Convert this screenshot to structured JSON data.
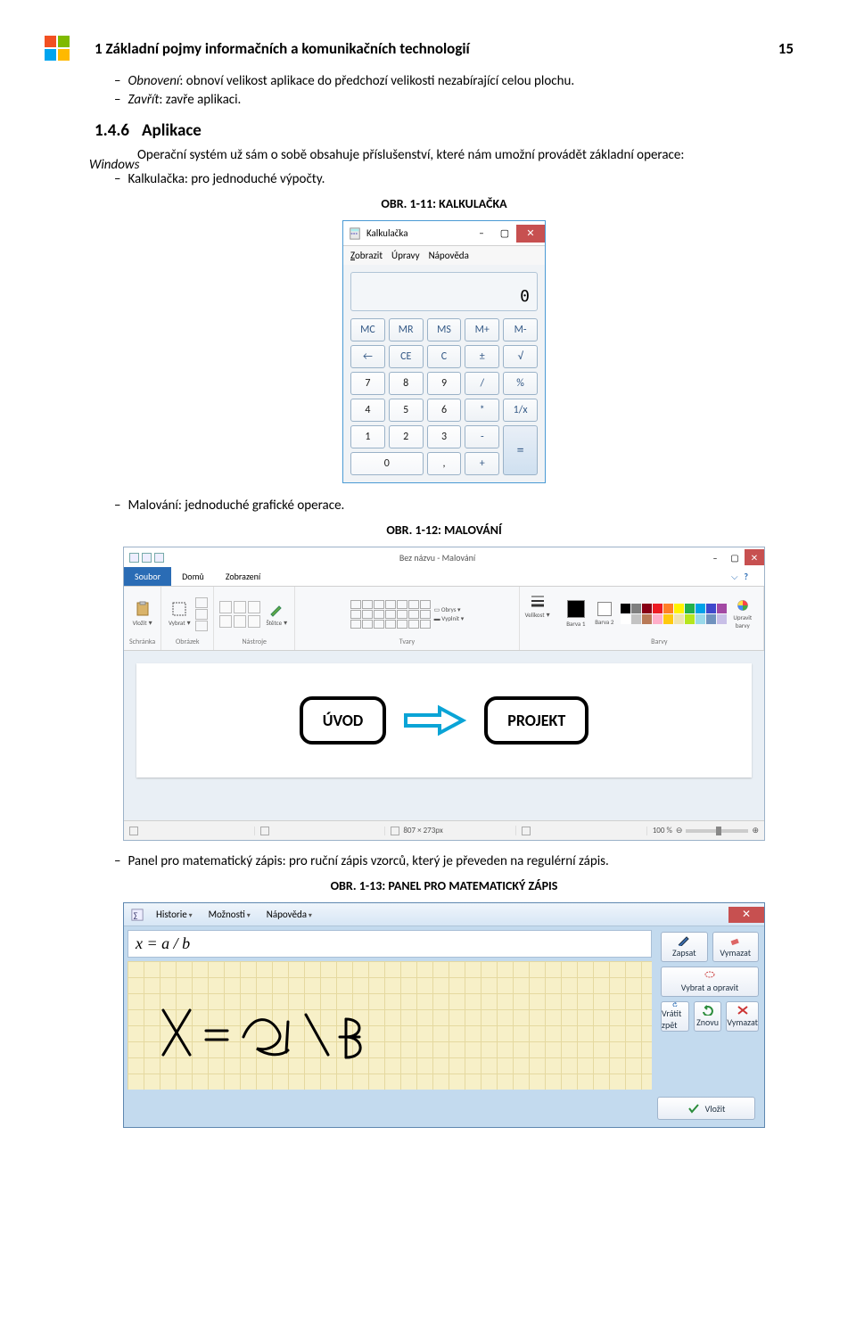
{
  "header": {
    "chapter_title": "1 Základní pojmy informačních a komunikačních technologií",
    "page_number": "15"
  },
  "top_list": {
    "item1_prefix": "Obnovení",
    "item1_rest": ": obnoví velikost aplikace do předchozí velikosti nezabírající celou plochu.",
    "item2_prefix": "Zavřít",
    "item2_rest": ": zavře aplikaci."
  },
  "side_note": "Windows",
  "section": {
    "num": "1.4.6",
    "title": "Aplikace"
  },
  "para1": "Operační systém už sám o sobě obsahuje příslušenství, které nám umožní provádět základní operace:",
  "list1": {
    "item1": "Kalkulačka: pro jednoduché výpočty."
  },
  "fig11_caption": "OBR. 1-11: KALKULAČKA",
  "calc": {
    "title": "Kalkulačka",
    "menu": {
      "m1": "Zobrazit",
      "m2": "Úpravy",
      "m3": "Nápověda"
    },
    "display": "0",
    "btns": [
      "MC",
      "MR",
      "MS",
      "M+",
      "M-",
      "←",
      "CE",
      "C",
      "±",
      "√",
      "7",
      "8",
      "9",
      "/",
      "%",
      "4",
      "5",
      "6",
      "*",
      "1/x",
      "1",
      "2",
      "3",
      "-",
      "0",
      ",",
      "+",
      "="
    ],
    "btn_colors": {
      "op": "#355a87"
    }
  },
  "list2": {
    "item1": "Malování: jednoduché grafické operace."
  },
  "fig12_caption": "OBR. 1-12: MALOVÁNÍ",
  "paint": {
    "title_center": "Bez názvu - Malování",
    "tabs": {
      "t1": "Soubor",
      "t2": "Domů",
      "t3": "Zobrazení"
    },
    "group_labels": {
      "g1": "Schránka",
      "g2": "Obrázek",
      "g3": "Nástroje",
      "g4": "Tvary",
      "g5": "Barvy"
    },
    "rbtn": {
      "paste": "Vložit",
      "select": "Vybrat",
      "brushes": "Štětce",
      "size": "Velikost",
      "c1": "Barva 1",
      "c2": "Barva 2",
      "edit": "Upravit barvy",
      "outline": "Obrys",
      "fill": "Vyplnit"
    },
    "canvas": {
      "uvod": "ÚVOD",
      "projekt": "PROJEKT"
    },
    "status": {
      "dims": "807 × 273px",
      "zoom": "100 %"
    },
    "palette": [
      "#000000",
      "#7f7f7f",
      "#880015",
      "#ed1c24",
      "#ff7f27",
      "#fff200",
      "#22b14c",
      "#00a2e8",
      "#3f48cc",
      "#a349a4",
      "#ffffff",
      "#c3c3c3",
      "#b97a57",
      "#ffaec9",
      "#ffc90e",
      "#efe4b0",
      "#b5e61d",
      "#99d9ea",
      "#7092be",
      "#c8bfe7"
    ]
  },
  "list3": {
    "item1": "Panel pro matematický zápis: pro ruční zápis vzorců, který je převeden na regulérní zápis."
  },
  "fig13_caption": "OBR. 1-13: PANEL PRO MATEMATICKÝ ZÁPIS",
  "mip": {
    "menu": {
      "m1": "Historie",
      "m2": "Možnosti",
      "m3": "Nápověda"
    },
    "formula": "x = a / b",
    "side": {
      "write": "Zapsat",
      "erase": "Vymazat",
      "selfix": "Vybrat a opravit",
      "undo": "Vrátit zpět",
      "redo": "Znovu",
      "clear": "Vymazat"
    },
    "insert": "Vložit"
  },
  "dash": "–"
}
